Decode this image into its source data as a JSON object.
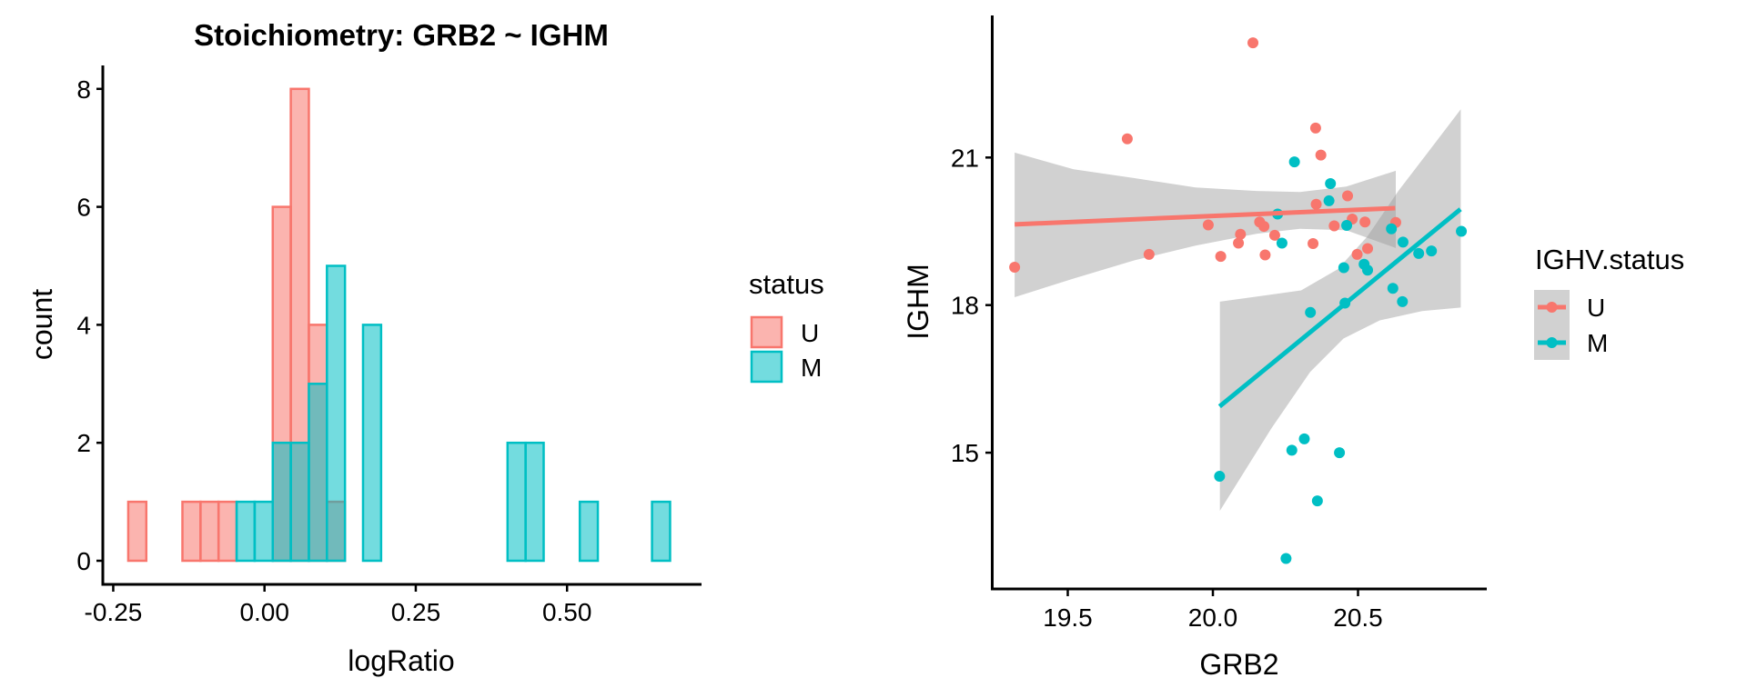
{
  "chart_data": [
    {
      "type": "bar",
      "subtype": "histogram",
      "title": "Stoichiometry: GRB2 ~ IGHM",
      "xlabel": "logRatio",
      "ylabel": "count",
      "xlim": [
        -0.25,
        0.7
      ],
      "ylim": [
        0,
        8.4
      ],
      "xticks": [
        -0.25,
        0.0,
        0.25,
        0.5
      ],
      "xtick_labels": [
        "-0.25",
        "0.00",
        "0.25",
        "0.50"
      ],
      "yticks": [
        0,
        2,
        4,
        6,
        8
      ],
      "ytick_labels": [
        "0",
        "2",
        "4",
        "6",
        "8"
      ],
      "bins": 30,
      "bin_start": -0.2252,
      "bin_width": 0.02985,
      "legend": {
        "title": "status",
        "position": "right",
        "entries": [
          "U",
          "M"
        ]
      },
      "series": [
        {
          "name": "U",
          "color": "#F8766D",
          "fill": "#F8766D",
          "counts": [
            1,
            0,
            0,
            1,
            1,
            1,
            0,
            0,
            6,
            8,
            4,
            1,
            0,
            0,
            0,
            0,
            0,
            0,
            0,
            0,
            0,
            0,
            0,
            0,
            0,
            0,
            0,
            0,
            0,
            0
          ]
        },
        {
          "name": "M",
          "color": "#00BFC4",
          "fill": "#00BFC4",
          "counts": [
            0,
            0,
            0,
            0,
            0,
            0,
            1,
            1,
            2,
            2,
            3,
            5,
            0,
            4,
            0,
            0,
            0,
            0,
            0,
            0,
            0,
            2,
            2,
            0,
            0,
            1,
            0,
            0,
            0,
            1
          ]
        }
      ]
    },
    {
      "type": "scatter",
      "title": "",
      "xlabel": "GRB2",
      "ylabel": "IGHM",
      "xlim": [
        19.24,
        20.93
      ],
      "ylim": [
        12.55,
        23.73
      ],
      "xticks": [
        19.5,
        20.0,
        20.5
      ],
      "xtick_labels": [
        "19.5",
        "20.0",
        "20.5"
      ],
      "yticks": [
        15,
        18,
        21
      ],
      "ytick_labels": [
        "15",
        "18",
        "21"
      ],
      "grid": false,
      "legend": {
        "title": "IGHV.status",
        "position": "right",
        "entries": [
          "U",
          "M"
        ]
      },
      "series": [
        {
          "name": "U",
          "color": "#F8766D",
          "points": [
            [
              19.317,
              18.77
            ],
            [
              19.705,
              21.38
            ],
            [
              20.138,
              23.33
            ],
            [
              20.354,
              21.6
            ],
            [
              20.372,
              21.05
            ],
            [
              19.78,
              19.03
            ],
            [
              19.984,
              19.63
            ],
            [
              20.027,
              18.99
            ],
            [
              20.088,
              19.26
            ],
            [
              20.095,
              19.44
            ],
            [
              20.161,
              19.69
            ],
            [
              20.176,
              19.6
            ],
            [
              20.213,
              19.42
            ],
            [
              20.18,
              19.02
            ],
            [
              20.356,
              20.05
            ],
            [
              20.345,
              19.25
            ],
            [
              20.418,
              19.61
            ],
            [
              20.464,
              20.22
            ],
            [
              20.48,
              19.75
            ],
            [
              20.524,
              19.69
            ],
            [
              20.497,
              19.03
            ],
            [
              20.533,
              19.15
            ],
            [
              20.63,
              19.68
            ]
          ],
          "fit": {
            "method": "lm",
            "x": [
              19.317,
              20.628
            ],
            "y": [
              19.64,
              19.97
            ]
          },
          "ci_upper": [
            [
              19.317,
              21.1
            ],
            [
              19.52,
              20.76
            ],
            [
              19.73,
              20.58
            ],
            [
              19.94,
              20.39
            ],
            [
              20.15,
              20.32
            ],
            [
              20.3,
              20.3
            ],
            [
              20.46,
              20.41
            ],
            [
              20.63,
              20.73
            ]
          ],
          "ci_lower": [
            [
              19.317,
              18.16
            ],
            [
              19.52,
              18.54
            ],
            [
              19.73,
              18.91
            ],
            [
              19.94,
              19.21
            ],
            [
              20.15,
              19.45
            ],
            [
              20.3,
              19.55
            ],
            [
              20.46,
              19.52
            ],
            [
              20.63,
              19.16
            ]
          ]
        },
        {
          "name": "M",
          "color": "#00BFC4",
          "points": [
            [
              20.281,
              20.91
            ],
            [
              20.405,
              20.47
            ],
            [
              20.4,
              20.12
            ],
            [
              20.223,
              19.85
            ],
            [
              20.238,
              19.26
            ],
            [
              20.461,
              19.62
            ],
            [
              20.615,
              19.55
            ],
            [
              20.655,
              19.28
            ],
            [
              20.709,
              19.05
            ],
            [
              20.753,
              19.1
            ],
            [
              20.856,
              19.5
            ],
            [
              20.451,
              18.76
            ],
            [
              20.521,
              18.83
            ],
            [
              20.533,
              18.71
            ],
            [
              20.62,
              18.34
            ],
            [
              20.653,
              18.07
            ],
            [
              20.455,
              18.04
            ],
            [
              20.336,
              17.85
            ],
            [
              20.315,
              15.28
            ],
            [
              20.272,
              15.05
            ],
            [
              20.436,
              15.0
            ],
            [
              20.023,
              14.52
            ],
            [
              20.36,
              14.02
            ],
            [
              20.252,
              12.85
            ]
          ],
          "fit": {
            "method": "lm",
            "x": [
              20.023,
              20.853
            ],
            "y": [
              15.94,
              19.95
            ]
          },
          "ci_upper": [
            [
              20.024,
              18.07
            ],
            [
              20.304,
              18.3
            ],
            [
              20.43,
              18.73
            ],
            [
              20.533,
              19.4
            ],
            [
              20.639,
              20.32
            ],
            [
              20.743,
              21.12
            ],
            [
              20.854,
              21.98
            ]
          ],
          "ci_lower": [
            [
              20.024,
              13.82
            ],
            [
              20.2,
              15.48
            ],
            [
              20.335,
              16.64
            ],
            [
              20.45,
              17.32
            ],
            [
              20.575,
              17.69
            ],
            [
              20.721,
              17.88
            ],
            [
              20.854,
              17.95
            ]
          ]
        }
      ]
    }
  ]
}
